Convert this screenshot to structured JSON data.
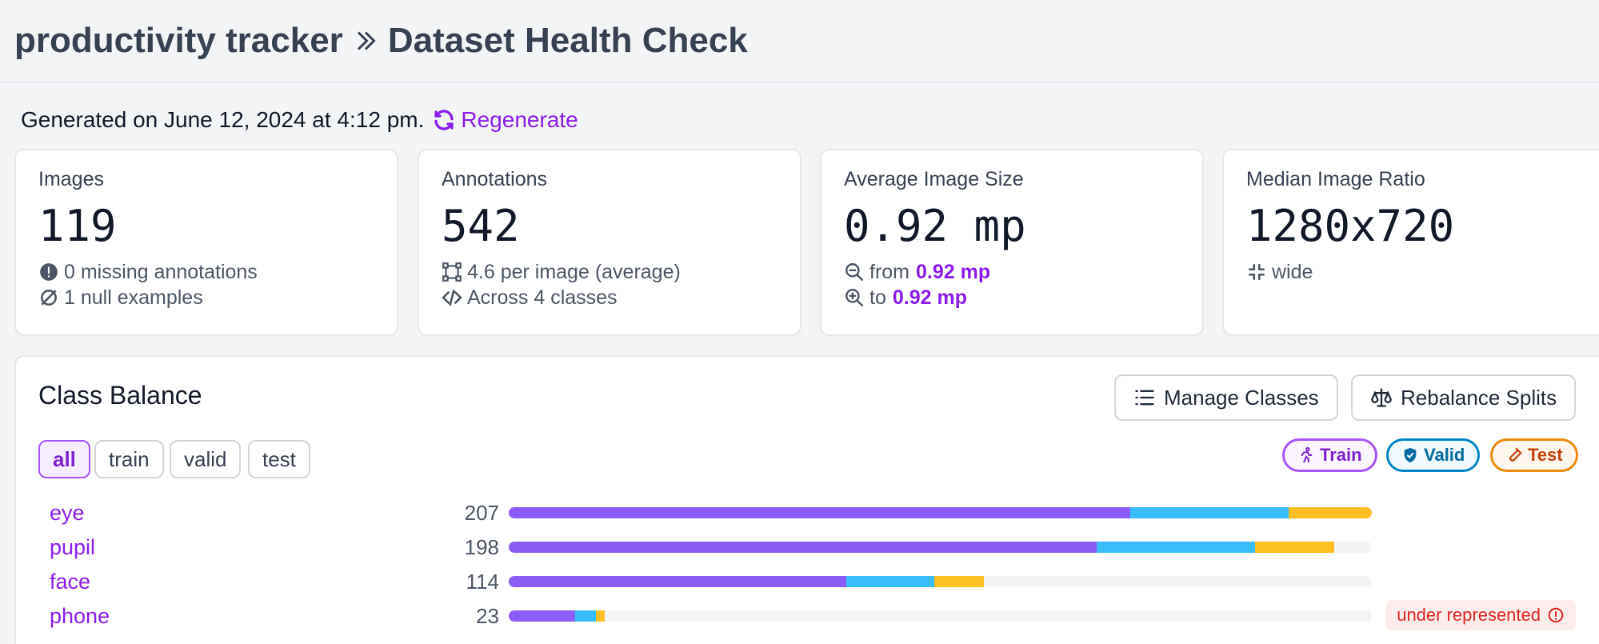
{
  "header": {
    "project": "productivity tracker",
    "page": "Dataset Health Check"
  },
  "generated": {
    "text": "Generated on June 12, 2024 at 4:12 pm.",
    "regenerate_label": "Regenerate"
  },
  "cards": {
    "images": {
      "label": "Images",
      "value": "119",
      "missing": "0 missing annotations",
      "null_examples": "1 null examples"
    },
    "annotations": {
      "label": "Annotations",
      "value": "542",
      "per_image": "4.6 per image (average)",
      "classes": "Across 4 classes"
    },
    "avg_size": {
      "label": "Average Image Size",
      "value": "0.92 mp",
      "from_label": "from",
      "from_value": "0.92 mp",
      "to_label": "to",
      "to_value": "0.92 mp"
    },
    "median_ratio": {
      "label": "Median Image Ratio",
      "value": "1280x720",
      "shape": "wide"
    }
  },
  "balance": {
    "title": "Class Balance",
    "manage_label": "Manage Classes",
    "rebalance_label": "Rebalance Splits",
    "tabs": [
      "all",
      "train",
      "valid",
      "test"
    ],
    "active_tab": "all",
    "legend": {
      "train": "Train",
      "valid": "Valid",
      "test": "Test"
    },
    "colors": {
      "train": "#8b5cf6",
      "valid": "#38bdf8",
      "test": "#fbbf24"
    },
    "warning_label": "under represented",
    "max": 207,
    "rows": [
      {
        "name": "eye",
        "count": "207",
        "train": 149,
        "valid": 38,
        "test": 20
      },
      {
        "name": "pupil",
        "count": "198",
        "train": 141,
        "valid": 38,
        "test": 19
      },
      {
        "name": "face",
        "count": "114",
        "train": 81,
        "valid": 21,
        "test": 12
      },
      {
        "name": "phone",
        "count": "23",
        "train": 16,
        "valid": 5,
        "test": 2,
        "warning": true
      }
    ]
  }
}
